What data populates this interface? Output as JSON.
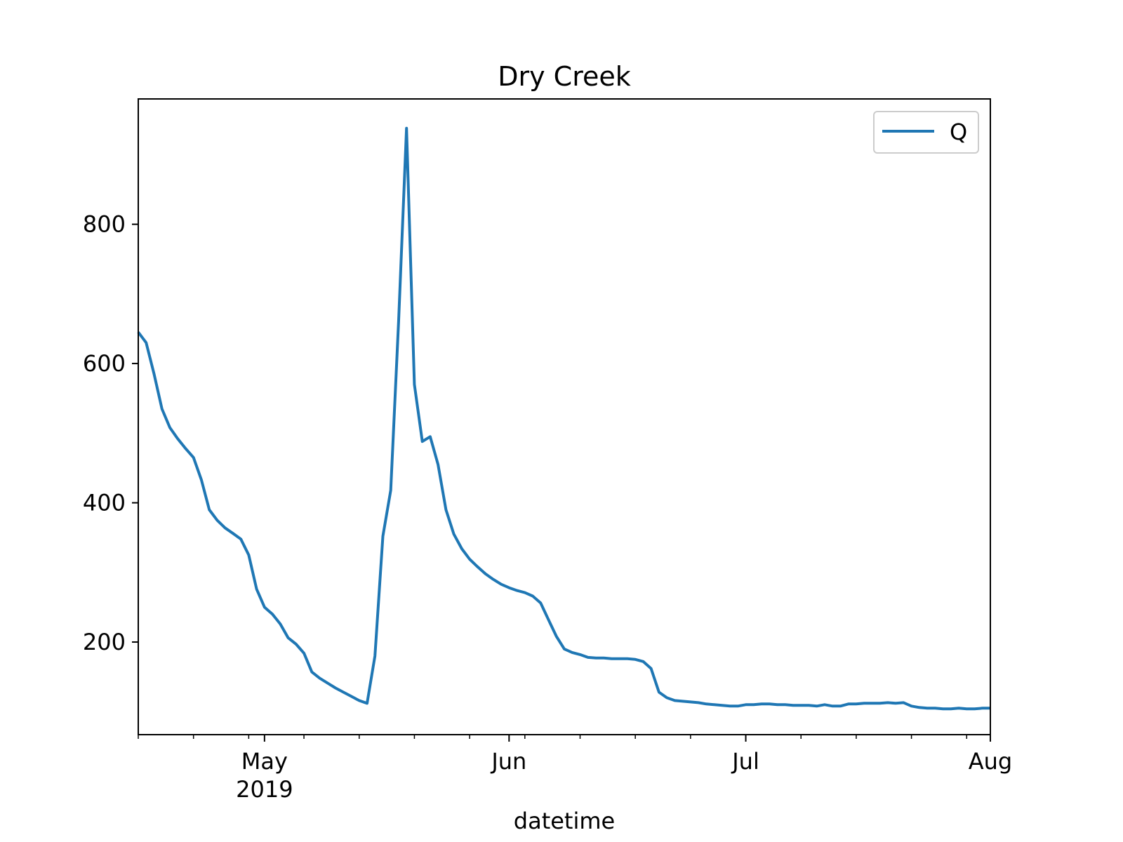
{
  "chart_data": {
    "type": "line",
    "title": "Dry Creek",
    "xlabel": "datetime",
    "ylabel": "",
    "grid": false,
    "legend": {
      "position": "top-right",
      "entries": [
        "Q"
      ]
    },
    "xlim": [
      "2019-04-15",
      "2019-08-01"
    ],
    "ylim": [
      67,
      980
    ],
    "y_ticks": [
      200,
      400,
      600,
      800
    ],
    "y_tick_labels": [
      "200",
      "400",
      "600",
      "800"
    ],
    "x_major_ticks": [
      {
        "date": "2019-05-01",
        "label": "May",
        "sublabel": "2019"
      },
      {
        "date": "2019-06-01",
        "label": "Jun",
        "sublabel": ""
      },
      {
        "date": "2019-07-01",
        "label": "Jul",
        "sublabel": ""
      },
      {
        "date": "2019-08-01",
        "label": "Aug",
        "sublabel": ""
      }
    ],
    "x_minor_ticks": [
      "2019-04-15",
      "2019-04-22",
      "2019-04-29",
      "2019-05-06",
      "2019-05-13",
      "2019-05-20",
      "2019-05-27",
      "2019-06-03",
      "2019-06-10",
      "2019-06-17",
      "2019-06-24",
      "2019-07-08",
      "2019-07-15",
      "2019-07-22",
      "2019-07-29"
    ],
    "series": [
      {
        "name": "Q",
        "color": "#1f77b4",
        "x": [
          "2019-04-15",
          "2019-04-16",
          "2019-04-17",
          "2019-04-18",
          "2019-04-19",
          "2019-04-20",
          "2019-04-21",
          "2019-04-22",
          "2019-04-23",
          "2019-04-24",
          "2019-04-25",
          "2019-04-26",
          "2019-04-27",
          "2019-04-28",
          "2019-04-29",
          "2019-04-30",
          "2019-05-01",
          "2019-05-02",
          "2019-05-03",
          "2019-05-04",
          "2019-05-05",
          "2019-05-06",
          "2019-05-07",
          "2019-05-08",
          "2019-05-09",
          "2019-05-10",
          "2019-05-11",
          "2019-05-12",
          "2019-05-13",
          "2019-05-14",
          "2019-05-15",
          "2019-05-16",
          "2019-05-17",
          "2019-05-18",
          "2019-05-19",
          "2019-05-20",
          "2019-05-21",
          "2019-05-22",
          "2019-05-23",
          "2019-05-24",
          "2019-05-25",
          "2019-05-26",
          "2019-05-27",
          "2019-05-28",
          "2019-05-29",
          "2019-05-30",
          "2019-05-31",
          "2019-06-01",
          "2019-06-02",
          "2019-06-03",
          "2019-06-04",
          "2019-06-05",
          "2019-06-06",
          "2019-06-07",
          "2019-06-08",
          "2019-06-09",
          "2019-06-10",
          "2019-06-11",
          "2019-06-12",
          "2019-06-13",
          "2019-06-14",
          "2019-06-15",
          "2019-06-16",
          "2019-06-17",
          "2019-06-18",
          "2019-06-19",
          "2019-06-20",
          "2019-06-21",
          "2019-06-22",
          "2019-06-23",
          "2019-06-24",
          "2019-06-25",
          "2019-06-26",
          "2019-06-27",
          "2019-06-28",
          "2019-06-29",
          "2019-06-30",
          "2019-07-01",
          "2019-07-02",
          "2019-07-03",
          "2019-07-04",
          "2019-07-05",
          "2019-07-06",
          "2019-07-07",
          "2019-07-08",
          "2019-07-09",
          "2019-07-10",
          "2019-07-11",
          "2019-07-12",
          "2019-07-13",
          "2019-07-14",
          "2019-07-15",
          "2019-07-16",
          "2019-07-17",
          "2019-07-18",
          "2019-07-19",
          "2019-07-20",
          "2019-07-21",
          "2019-07-22",
          "2019-07-23",
          "2019-07-24",
          "2019-07-25",
          "2019-07-26",
          "2019-07-27",
          "2019-07-28",
          "2019-07-29",
          "2019-07-30",
          "2019-07-31",
          "2019-08-01"
        ],
        "values": [
          645,
          630,
          585,
          535,
          508,
          492,
          478,
          465,
          433,
          390,
          375,
          364,
          356,
          348,
          325,
          276,
          250,
          240,
          226,
          206,
          197,
          184,
          157,
          148,
          141,
          134,
          128,
          122,
          116,
          112,
          180,
          352,
          418,
          660,
          938,
          570,
          488,
          495,
          455,
          390,
          355,
          334,
          319,
          308,
          298,
          290,
          283,
          278,
          274,
          271,
          266,
          256,
          232,
          208,
          190,
          185,
          182,
          178,
          177,
          177,
          176,
          176,
          176,
          175,
          172,
          162,
          128,
          120,
          116,
          115,
          114,
          113,
          111,
          110,
          109,
          108,
          108,
          110,
          110,
          111,
          111,
          110,
          110,
          109,
          109,
          109,
          108,
          110,
          108,
          108,
          111,
          111,
          112,
          112,
          112,
          113,
          112,
          113,
          108,
          106,
          105,
          105,
          104,
          104,
          105,
          104,
          104,
          105,
          105
        ]
      }
    ]
  }
}
